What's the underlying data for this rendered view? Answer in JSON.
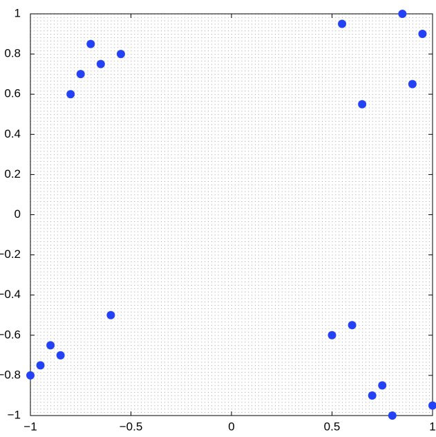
{
  "chart_data": {
    "type": "scatter",
    "color": "#2342f5",
    "grid": true,
    "x": [
      -1,
      -0.95,
      -0.9,
      -0.85,
      -0.6,
      -0.8,
      -0.75,
      -0.7,
      -0.65,
      -0.55,
      0.55,
      0.65,
      0.85,
      0.9,
      0.95,
      0.5,
      0.6,
      0.7,
      0.75,
      0.8,
      1
    ],
    "values": [
      -0.8,
      -0.75,
      -0.65,
      -0.7,
      -0.5,
      0.6,
      0.7,
      0.85,
      0.75,
      0.8,
      0.95,
      0.55,
      1,
      0.65,
      0.9,
      -0.6,
      -0.55,
      -0.9,
      -0.85,
      -1,
      -0.95
    ],
    "xlim": [
      -1,
      1
    ],
    "ylim": [
      -1,
      1
    ],
    "xticks": [
      {
        "value": -1,
        "label": "−1"
      },
      {
        "value": -0.5,
        "label": "−0.5"
      },
      0,
      0.5,
      1
    ],
    "yticks": [
      {
        "value": -1,
        "label": "−1"
      },
      {
        "value": -0.8,
        "label": "−0.8"
      },
      {
        "value": -0.6,
        "label": "−0.6"
      },
      {
        "value": -0.4,
        "label": "−0.4"
      },
      {
        "value": -0.2,
        "label": "−0.2"
      },
      0,
      0.2,
      0.4,
      0.6,
      0.8,
      1
    ]
  }
}
